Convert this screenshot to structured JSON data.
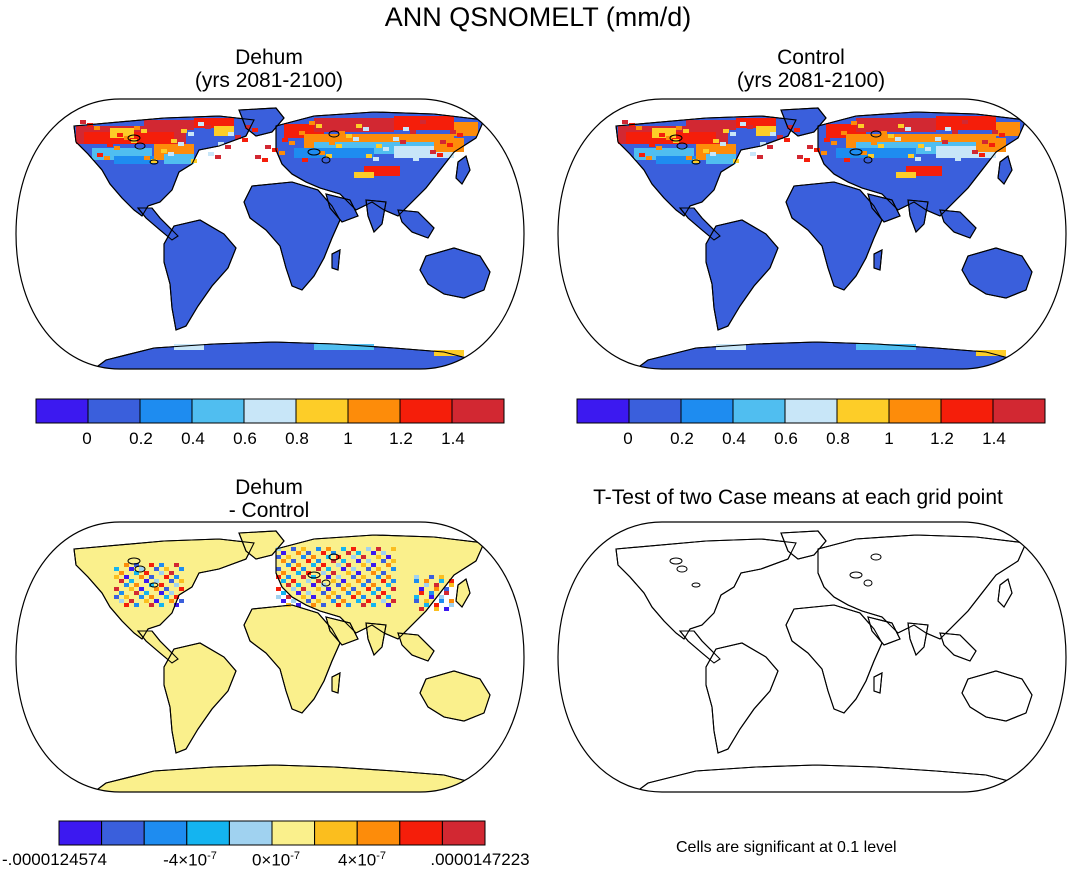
{
  "figure": {
    "title": "ANN QSNOMELT (mm/d)"
  },
  "panels": [
    {
      "id": "dehum",
      "title_line1": "Dehum",
      "title_line2": "(yrs 2081-2100)"
    },
    {
      "id": "control",
      "title_line1": "Control",
      "title_line2": "(yrs 2081-2100)"
    },
    {
      "id": "diff",
      "title_line1": "Dehum",
      "title_line2": "- Control"
    },
    {
      "id": "ttest",
      "title_line1": "T-Test of two Case means at each grid point",
      "title_line2": ""
    }
  ],
  "chart_data": [
    {
      "type": "heatmap",
      "title": "Dehum (yrs 2081-2100)",
      "projection": "Robinson",
      "variable": "QSNOMELT",
      "units": "mm/d",
      "colorbar": {
        "levels": [
          "0",
          "0.2",
          "0.4",
          "0.6",
          "0.8",
          "1",
          "1.2",
          "1.4"
        ],
        "colors": [
          "#3c19f0",
          "#3a5fdc",
          "#1e8cf0",
          "#50bef0",
          "#c8e6f8",
          "#fdcd28",
          "#fd8c0a",
          "#f51e0a",
          "#d22832"
        ]
      }
    },
    {
      "type": "heatmap",
      "title": "Control (yrs 2081-2100)",
      "projection": "Robinson",
      "variable": "QSNOMELT",
      "units": "mm/d",
      "colorbar": {
        "levels": [
          "0",
          "0.2",
          "0.4",
          "0.6",
          "0.8",
          "1",
          "1.2",
          "1.4"
        ],
        "colors": [
          "#3c19f0",
          "#3a5fdc",
          "#1e8cf0",
          "#50bef0",
          "#c8e6f8",
          "#fdcd28",
          "#fd8c0a",
          "#f51e0a",
          "#d22832"
        ]
      }
    },
    {
      "type": "heatmap",
      "title": "Dehum - Control",
      "projection": "Robinson",
      "variable": "QSNOMELT difference",
      "units": "mm/d",
      "colorbar": {
        "labels": [
          ".0000124574",
          "-4×10",
          "0×10",
          "4×10",
          ".0000147223"
        ],
        "label_prefix": "-",
        "exponent": "-7",
        "colors": [
          "#3c19f0",
          "#3a5fdc",
          "#1e8cf0",
          "#14b4f0",
          "#a0d2f0",
          "#faf08c",
          "#fbbe1e",
          "#fd8c0a",
          "#f51e0a",
          "#d22832"
        ]
      }
    },
    {
      "type": "heatmap",
      "title": "T-Test of two Case means at each grid point",
      "projection": "Robinson",
      "note": "Cells are significant at 0.1 level",
      "significant_cells": 0
    }
  ],
  "colors": {
    "land_fill_main": "#3a5fdc",
    "land_fill_diff": "#faf08c",
    "ocean": "#ffffff",
    "outline": "#000000"
  }
}
